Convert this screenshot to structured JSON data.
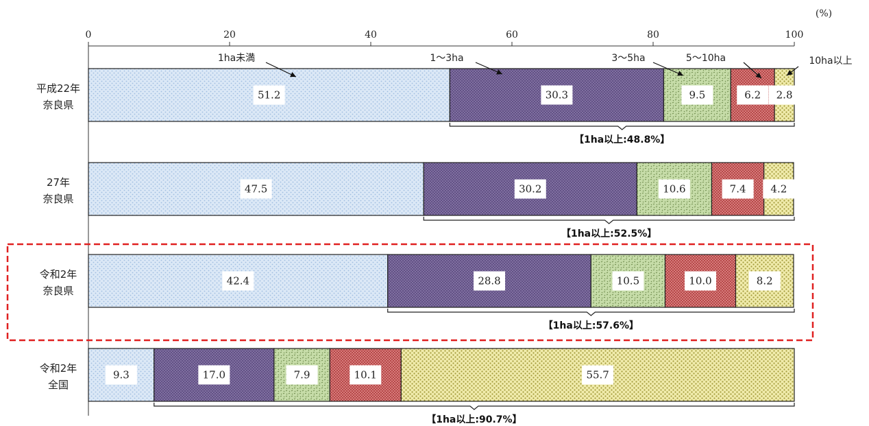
{
  "chart_data": {
    "type": "bar",
    "orientation": "horizontal",
    "stacked": true,
    "title": "",
    "unit_label": "(%)",
    "xlim": [
      0,
      100
    ],
    "xticks": [
      0,
      20,
      40,
      60,
      80,
      100
    ],
    "categories": [
      [
        "平成22年",
        "奈良県"
      ],
      [
        "27年",
        "奈良県"
      ],
      [
        "令和2年",
        "奈良県"
      ],
      [
        "令和2年",
        "全国"
      ]
    ],
    "series": [
      {
        "name": "1ha未満",
        "color": "#cfe0f3",
        "values": [
          51.2,
          47.5,
          42.4,
          9.3
        ]
      },
      {
        "name": "1〜3ha",
        "color": "#7b6a9b",
        "values": [
          30.3,
          30.2,
          28.8,
          17.0
        ]
      },
      {
        "name": "3〜5ha",
        "color": "#b9d39a",
        "values": [
          9.5,
          10.6,
          10.5,
          7.9
        ]
      },
      {
        "name": "5〜10ha",
        "color": "#d46a6a",
        "values": [
          6.2,
          7.4,
          10.0,
          10.1
        ]
      },
      {
        "name": "10ha以上",
        "color": "#e8e39a",
        "values": [
          2.8,
          4.2,
          8.2,
          55.7
        ]
      }
    ],
    "brackets": [
      "【1ha以上:48.8%】",
      "【1ha以上:52.5%】",
      "【1ha以上:57.6%】",
      "【1ha以上:90.7%】"
    ],
    "highlighted_category": 2,
    "highlight_color": "#e02020"
  }
}
